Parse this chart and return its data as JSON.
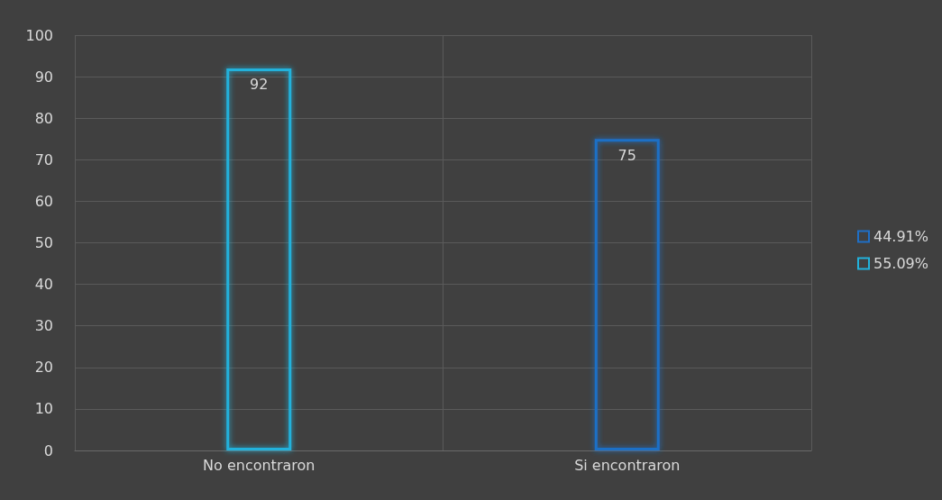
{
  "chart_data": {
    "type": "bar",
    "categories": [
      "No encontraron",
      "Si encontraron"
    ],
    "series": [
      {
        "name": "44.91%",
        "color": "#1f6fc6",
        "values": [
          null,
          75
        ]
      },
      {
        "name": "55.09%",
        "color": "#22b2dc",
        "values": [
          92,
          null
        ]
      }
    ],
    "ylim": [
      0,
      100
    ],
    "yticks": [
      0,
      10,
      20,
      30,
      40,
      50,
      60,
      70,
      80,
      90,
      100
    ],
    "grid": true,
    "legend": "right",
    "data_labels": true
  }
}
